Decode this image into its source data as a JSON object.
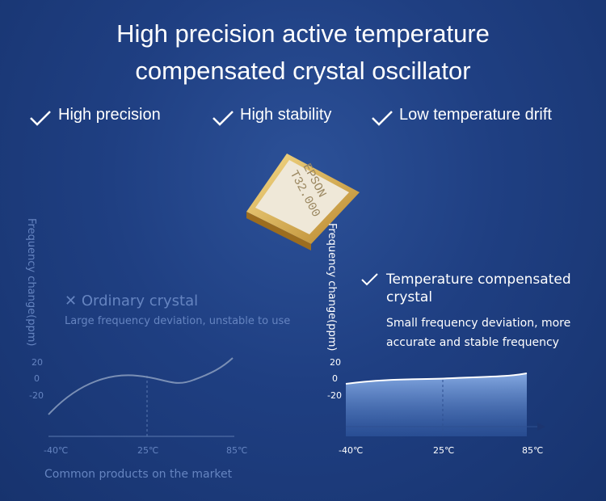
{
  "title": {
    "lines": [
      "High precision active temperature",
      "compensated crystal oscillator"
    ]
  },
  "features": [
    "High precision",
    "High stability",
    "Low temperature drift"
  ],
  "chip": {
    "lines": [
      "EPSON",
      "T32.000"
    ]
  },
  "left_panel": {
    "axis_label": "Frequency change(ppm)",
    "heading": "Ordinary crystal",
    "description": "Large frequency deviation, unstable to use",
    "yticks": [
      "20",
      "0",
      "-20"
    ],
    "xticks": [
      "-40℃",
      "25℃",
      "85℃"
    ],
    "caption": "Common products on the market"
  },
  "right_panel": {
    "axis_label": "Frequency change(ppm)",
    "heading": "Temperature compensated crystal",
    "description": "Small frequency deviation, more accurate and stable frequency",
    "yticks": [
      "20",
      "0",
      "-20"
    ],
    "xticks": [
      "-40℃",
      "25℃",
      "85℃"
    ]
  }
}
